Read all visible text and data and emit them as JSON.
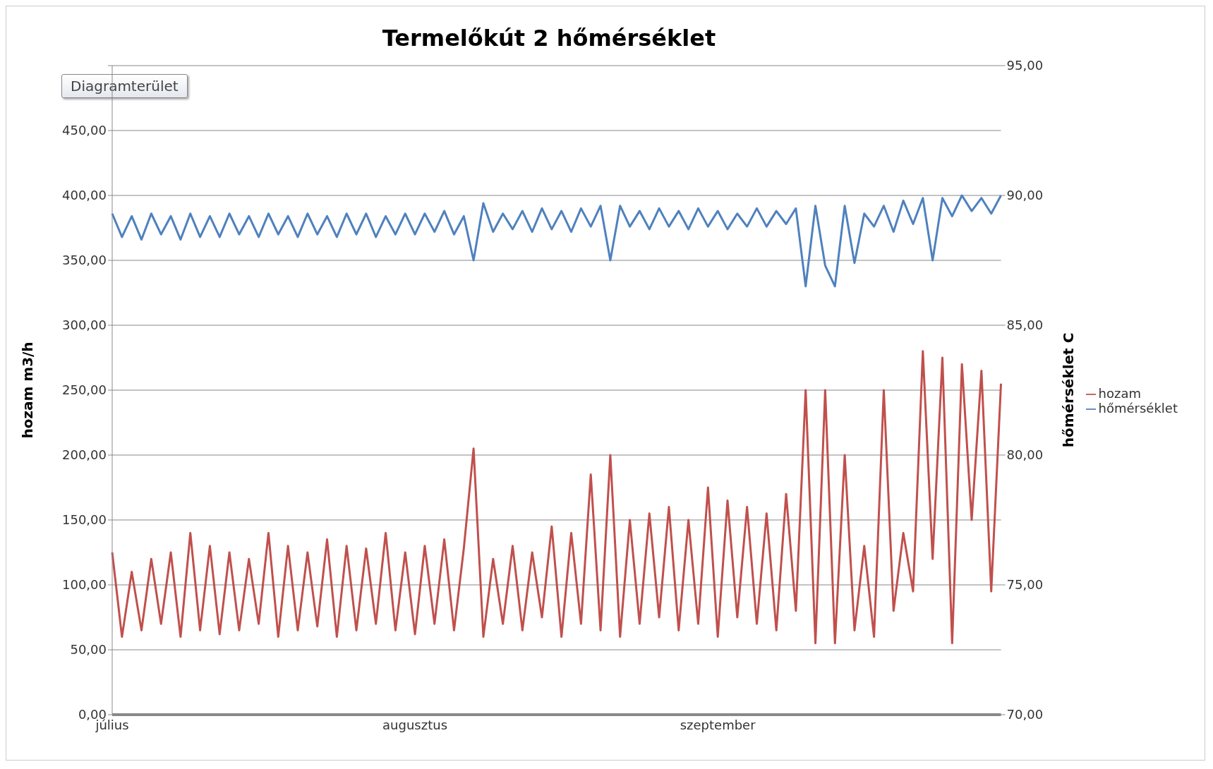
{
  "chart_data": {
    "type": "line",
    "title": "Termelőkút 2 hőmérséklet",
    "ylabel": "hozam m3/h",
    "y2label": "hőmérséklet C",
    "annotations": [
      "Diagramterület"
    ],
    "categories": [
      "július",
      null,
      null,
      null,
      null,
      null,
      null,
      null,
      null,
      null,
      null,
      null,
      null,
      null,
      null,
      null,
      null,
      null,
      null,
      null,
      null,
      null,
      null,
      null,
      null,
      null,
      null,
      null,
      null,
      null,
      null,
      "augusztus",
      null,
      null,
      null,
      null,
      null,
      null,
      null,
      null,
      null,
      null,
      null,
      null,
      null,
      null,
      null,
      null,
      null,
      null,
      null,
      null,
      null,
      null,
      null,
      null,
      null,
      null,
      null,
      null,
      null,
      null,
      "szeptember",
      null,
      null,
      null,
      null,
      null,
      null,
      null,
      null,
      null,
      null,
      null,
      null,
      null,
      null,
      null,
      null,
      null,
      null,
      null,
      null,
      null,
      null,
      null,
      null,
      null,
      null,
      null,
      null,
      null
    ],
    "series": [
      {
        "name": "hozam",
        "color": "#c0504d",
        "values": [
          125,
          60,
          110,
          65,
          120,
          70,
          125,
          60,
          140,
          65,
          130,
          62,
          125,
          65,
          120,
          70,
          140,
          60,
          130,
          65,
          125,
          68,
          135,
          60,
          130,
          65,
          128,
          70,
          140,
          65,
          125,
          62,
          130,
          70,
          135,
          65,
          128,
          205,
          60,
          120,
          70,
          130,
          65,
          125,
          75,
          145,
          60,
          140,
          70,
          185,
          65,
          200,
          60,
          150,
          70,
          155,
          75,
          160,
          65,
          150,
          70,
          175,
          60,
          165,
          75,
          160,
          70,
          155,
          65,
          170,
          80,
          250,
          55,
          250,
          55,
          200,
          65,
          130,
          60,
          250,
          80,
          140,
          95,
          280,
          120,
          275,
          55,
          270,
          150,
          265,
          95,
          255
        ]
      },
      {
        "name": "hőmérséklet",
        "color": "#4f81bd",
        "axis": "y2",
        "values": [
          89.3,
          88.4,
          89.2,
          88.3,
          89.3,
          88.5,
          89.2,
          88.3,
          89.3,
          88.4,
          89.2,
          88.4,
          89.3,
          88.5,
          89.2,
          88.4,
          89.3,
          88.5,
          89.2,
          88.4,
          89.3,
          88.5,
          89.2,
          88.4,
          89.3,
          88.5,
          89.3,
          88.4,
          89.2,
          88.5,
          89.3,
          88.5,
          89.3,
          88.6,
          89.4,
          88.5,
          89.2,
          87.5,
          89.7,
          88.6,
          89.3,
          88.7,
          89.4,
          88.6,
          89.5,
          88.7,
          89.4,
          88.6,
          89.5,
          88.8,
          89.6,
          87.5,
          89.6,
          88.8,
          89.4,
          88.7,
          89.5,
          88.8,
          89.4,
          88.7,
          89.5,
          88.8,
          89.4,
          88.7,
          89.3,
          88.8,
          89.5,
          88.8,
          89.4,
          88.9,
          89.5,
          86.5,
          89.6,
          87.3,
          86.5,
          89.6,
          87.4,
          89.3,
          88.8,
          89.6,
          88.6,
          89.8,
          88.9,
          89.9,
          87.5,
          89.9,
          89.2,
          90.0,
          89.4,
          89.9,
          89.3,
          90.0
        ]
      }
    ],
    "ylim": [
      0,
      500
    ],
    "yticks": [
      {
        "value": 0,
        "label": "0,00"
      },
      {
        "value": 50,
        "label": "50,00"
      },
      {
        "value": 100,
        "label": "100,00"
      },
      {
        "value": 150,
        "label": "150,00"
      },
      {
        "value": 200,
        "label": "200,00"
      },
      {
        "value": 250,
        "label": "250,00"
      },
      {
        "value": 300,
        "label": "300,00"
      },
      {
        "value": 350,
        "label": "350,00"
      },
      {
        "value": 400,
        "label": "400,00"
      },
      {
        "value": 450,
        "label": "450,00"
      },
      {
        "value": 500,
        "label": null
      }
    ],
    "y2lim": [
      70,
      95
    ],
    "y2ticks": [
      {
        "value": 70,
        "label": "70,00"
      },
      {
        "value": 75,
        "label": "75,00"
      },
      {
        "value": 80,
        "label": "80,00"
      },
      {
        "value": 85,
        "label": "85,00"
      },
      {
        "value": 90,
        "label": "90,00"
      },
      {
        "value": 95,
        "label": "95,00"
      }
    ],
    "grid": "y",
    "legend": "right"
  }
}
